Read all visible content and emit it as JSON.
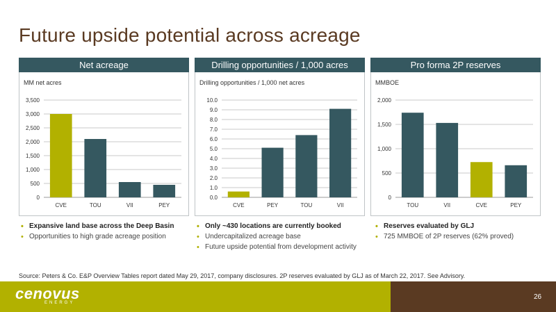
{
  "slide": {
    "title": "Future upside potential across acreage",
    "source": "Source: Peters & Co. E&P Overview Tables report dated May 29, 2017, company disclosures. 2P reserves evaluated by GLJ as of March 22, 2017. See Advisory.",
    "logo": "cenovus",
    "logo_sub": "ENERGY",
    "page_number": "26"
  },
  "panels": [
    {
      "header": "Net acreage",
      "bullets": [
        {
          "text": "Expansive land base across the Deep Basin",
          "bold": true
        },
        {
          "text": "Opportunities to high grade acreage position",
          "bold": false
        }
      ]
    },
    {
      "header": "Drilling opportunities / 1,000 acres",
      "bullets": [
        {
          "text": "Only ~430 locations are currently booked",
          "bold": true
        },
        {
          "text": "Undercapitalized acreage base",
          "bold": false
        },
        {
          "text": "Future upside potential from development activity",
          "bold": false
        }
      ]
    },
    {
      "header": "Pro forma 2P reserves",
      "bullets": [
        {
          "text": "Reserves evaluated by GLJ",
          "bold": true
        },
        {
          "text": "725 MMBOE of 2P reserves (62% proved)",
          "bold": false
        }
      ]
    }
  ],
  "colors": {
    "highlight": "#b2b100",
    "bar": "#355860",
    "brown": "#5a3a22"
  },
  "chart_data": [
    {
      "type": "bar",
      "title": "Net acreage",
      "ylabel": "MM net acres",
      "categories": [
        "CVE",
        "TOU",
        "VII",
        "PEY"
      ],
      "values": [
        3000,
        2100,
        550,
        450
      ],
      "highlight": "CVE",
      "ylim": [
        0,
        3500
      ],
      "yticks": [
        "0",
        "500",
        "1,000",
        "1,500",
        "2,000",
        "2,500",
        "3,000",
        "3,500"
      ],
      "grid": true
    },
    {
      "type": "bar",
      "title": "Drilling opportunities / 1,000 acres",
      "ylabel": "Drilling opportunities / 1,000 net acres",
      "categories": [
        "CVE",
        "PEY",
        "TOU",
        "VII"
      ],
      "values": [
        0.6,
        5.1,
        6.4,
        9.1
      ],
      "highlight": "CVE",
      "ylim": [
        0,
        10
      ],
      "yticks": [
        "0.0",
        "1.0",
        "2.0",
        "3.0",
        "4.0",
        "5.0",
        "6.0",
        "7.0",
        "8.0",
        "9.0",
        "10.0"
      ],
      "grid": true
    },
    {
      "type": "bar",
      "title": "Pro forma 2P reserves",
      "ylabel": "MMBOE",
      "categories": [
        "TOU",
        "VII",
        "CVE",
        "PEY"
      ],
      "values": [
        1740,
        1530,
        725,
        660
      ],
      "highlight": "CVE",
      "ylim": [
        0,
        2000
      ],
      "yticks": [
        "0",
        "500",
        "1,000",
        "1,500",
        "2,000"
      ],
      "grid": true
    }
  ]
}
